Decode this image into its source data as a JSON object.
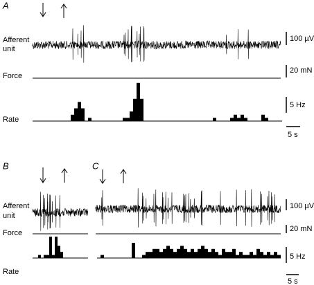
{
  "panels": [
    {
      "label": "A",
      "trace_label": [
        "Afferent",
        "unit"
      ],
      "force_label": "Force",
      "rate_label": "Rate",
      "scale_bars": {
        "voltage": "100 µV",
        "force": "20 mN",
        "rate": "5 Hz",
        "time": "5 s"
      },
      "rate_hz": [
        0,
        0,
        0,
        0,
        0,
        0,
        0,
        0,
        0,
        0,
        0,
        2,
        4,
        6,
        4,
        0,
        1,
        0,
        0,
        0,
        0,
        0,
        0,
        0,
        0,
        0,
        1,
        1,
        3,
        7,
        12,
        7,
        0,
        0,
        0,
        0,
        0,
        0,
        0,
        0,
        0,
        0,
        0,
        0,
        0,
        0,
        0,
        0,
        0,
        0,
        0,
        0,
        1,
        0,
        0,
        0,
        0,
        1,
        2,
        1,
        2,
        1,
        0,
        0,
        0,
        0,
        2,
        1,
        0,
        0,
        0,
        0
      ]
    },
    {
      "label": "B",
      "trace_label": [
        "Afferent",
        "unit"
      ],
      "force_label": "Force",
      "rate_label": "Rate",
      "rate_hz": [
        0,
        0,
        1,
        0,
        1,
        1,
        7,
        1,
        7,
        4,
        2,
        0,
        0,
        0,
        0,
        0,
        0,
        0,
        0,
        0
      ]
    },
    {
      "label": "C",
      "scale_bars": {
        "voltage": "100 µV",
        "force": "20 mN",
        "rate": "5 Hz",
        "time": "5 s"
      },
      "rate_hz": [
        0,
        1,
        0,
        0,
        0,
        0,
        0,
        0,
        0,
        0,
        5,
        0,
        0,
        1,
        2,
        2,
        3,
        3,
        2,
        3,
        4,
        3,
        2,
        3,
        4,
        3,
        2,
        3,
        2,
        3,
        4,
        3,
        2,
        3,
        2,
        1,
        3,
        2,
        2,
        3,
        1,
        2,
        1,
        1,
        2,
        1,
        3,
        2,
        1,
        2,
        1,
        2,
        1
      ]
    }
  ]
}
